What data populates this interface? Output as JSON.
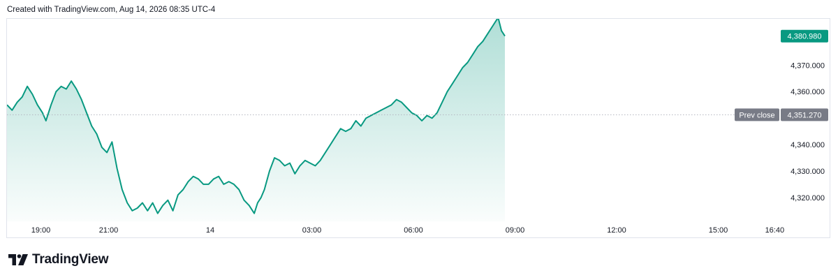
{
  "header": {
    "text": "Created with TradingView.com, Aug 14, 2026 08:35 UTC-4"
  },
  "brand": {
    "name": "TradingView",
    "logo_icon": "tradingview-logo-icon"
  },
  "colors": {
    "line": "#089981",
    "fill_top": "#089981",
    "last_price_badge": "#089981",
    "prev_close_badge": "#787b86",
    "prev_close_line": "#b2b5be"
  },
  "chart_data": {
    "type": "area",
    "ylim": [
      4311,
      4387.5
    ],
    "y_ticks": [
      {
        "value": 4370,
        "label": "4,370.000"
      },
      {
        "value": 4360,
        "label": "4,360.000"
      },
      {
        "value": 4340,
        "label": "4,340.000"
      },
      {
        "value": 4330,
        "label": "4,330.000"
      },
      {
        "value": 4320,
        "label": "4,320.000"
      }
    ],
    "x_ticks": [
      {
        "hour": 19,
        "label": "19:00"
      },
      {
        "hour": 21,
        "label": "21:00"
      },
      {
        "hour": 24,
        "label": "14"
      },
      {
        "hour": 27,
        "label": "03:00"
      },
      {
        "hour": 30,
        "label": "06:00"
      },
      {
        "hour": 33,
        "label": "09:00"
      },
      {
        "hour": 36,
        "label": "12:00"
      },
      {
        "hour": 39,
        "label": "15:00"
      },
      {
        "hour": 40.6667,
        "label": "16:40"
      }
    ],
    "last_price": {
      "value": 4380.98,
      "label": "4,380.980"
    },
    "prev_close": {
      "value": 4351.27,
      "label": "Prev close",
      "value_label": "4,351.270"
    },
    "series": [
      {
        "x": [
          18.0,
          18.15,
          18.3,
          18.45,
          18.6,
          18.75,
          18.9,
          19.05,
          19.15,
          19.3,
          19.45,
          19.6,
          19.75,
          19.9,
          20.05,
          20.2,
          20.35,
          20.5,
          20.65,
          20.8,
          20.95,
          21.1,
          21.25,
          21.4,
          21.55,
          21.7,
          21.85,
          22.0,
          22.15,
          22.3,
          22.45,
          22.6,
          22.75,
          22.9,
          23.05,
          23.2,
          23.35,
          23.5,
          23.65,
          23.8,
          23.95,
          24.1,
          24.25,
          24.4,
          24.55,
          24.7,
          24.85,
          25.0,
          25.15,
          25.3,
          25.4,
          25.5,
          25.6,
          25.75,
          25.9,
          26.05,
          26.2,
          26.35,
          26.5,
          26.65,
          26.8,
          26.95,
          27.1,
          27.25,
          27.4,
          27.55,
          27.7,
          27.85,
          28.0,
          28.15,
          28.3,
          28.45,
          28.6,
          28.75,
          28.9,
          29.05,
          29.2,
          29.35,
          29.5,
          29.65,
          29.8,
          29.95,
          30.1,
          30.25,
          30.4,
          30.55,
          30.7,
          30.85,
          31.0,
          31.15,
          31.3,
          31.45,
          31.6,
          31.75,
          31.9,
          32.05,
          32.2,
          32.35,
          32.5,
          32.6,
          32.7
        ],
        "y": [
          4355,
          4353,
          4356,
          4358,
          4362,
          4359,
          4355,
          4352,
          4349,
          4355,
          4360,
          4362,
          4361,
          4364,
          4361,
          4357,
          4352,
          4347,
          4344,
          4339,
          4337,
          4341,
          4331,
          4323,
          4318,
          4315,
          4316,
          4318,
          4315,
          4318,
          4314,
          4317,
          4319,
          4315,
          4321,
          4323,
          4326,
          4328,
          4327,
          4325,
          4325,
          4327,
          4328,
          4325,
          4326,
          4325,
          4323,
          4319,
          4317,
          4314,
          4318,
          4320,
          4323,
          4330,
          4335,
          4334,
          4332,
          4333,
          4329,
          4332,
          4334,
          4333,
          4332,
          4334,
          4337,
          4340,
          4343,
          4346,
          4345,
          4346,
          4349,
          4347,
          4350,
          4351,
          4352,
          4353,
          4354,
          4355,
          4357,
          4356,
          4354,
          4352,
          4351,
          4349,
          4351,
          4350,
          4352,
          4356,
          4360,
          4363,
          4366,
          4369,
          4371,
          4374,
          4377,
          4379,
          4382,
          4385,
          4388,
          4383,
          4381
        ]
      }
    ]
  }
}
